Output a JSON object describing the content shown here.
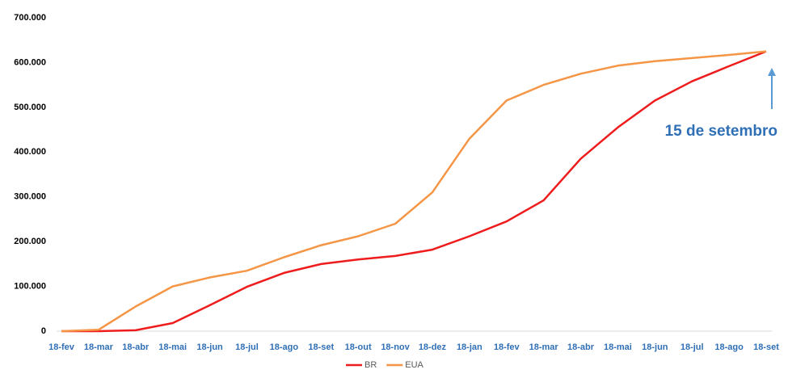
{
  "chart_data": {
    "type": "line",
    "categories": [
      "18-fev",
      "18-mar",
      "18-abr",
      "18-mai",
      "18-jun",
      "18-jul",
      "18-ago",
      "18-set",
      "18-out",
      "18-nov",
      "18-dez",
      "18-jan",
      "18-fev",
      "18-mar",
      "18-abr",
      "18-mai",
      "18-jun",
      "18-jul",
      "18-ago",
      "18-set"
    ],
    "series": [
      {
        "name": "BR",
        "color": "#ee1c1c",
        "values": [
          0,
          0,
          2000,
          18000,
          58000,
          99000,
          130000,
          150000,
          160000,
          168000,
          182000,
          212000,
          245000,
          292000,
          385000,
          455000,
          515000,
          558000,
          592000,
          625000
        ]
      },
      {
        "name": "EUA",
        "color": "#f59546",
        "values": [
          0,
          3000,
          55000,
          100000,
          120000,
          135000,
          165000,
          192000,
          212000,
          240000,
          310000,
          430000,
          515000,
          550000,
          575000,
          593000,
          603000,
          610000,
          617000,
          625000
        ]
      }
    ],
    "ylim": [
      0,
      700000
    ],
    "yticks": [
      0,
      {
        "value": 100000,
        "label": "100.000"
      },
      {
        "value": 200000,
        "label": "200.000"
      },
      {
        "value": 300000,
        "label": "300.000"
      },
      {
        "value": 400000,
        "label": "400.000"
      },
      {
        "value": 500000,
        "label": "500.000"
      },
      {
        "value": 600000,
        "label": "600.000"
      },
      {
        "value": 700000,
        "label": "700.000"
      }
    ],
    "annotation": "15 de setembro",
    "legend": "bottom"
  }
}
